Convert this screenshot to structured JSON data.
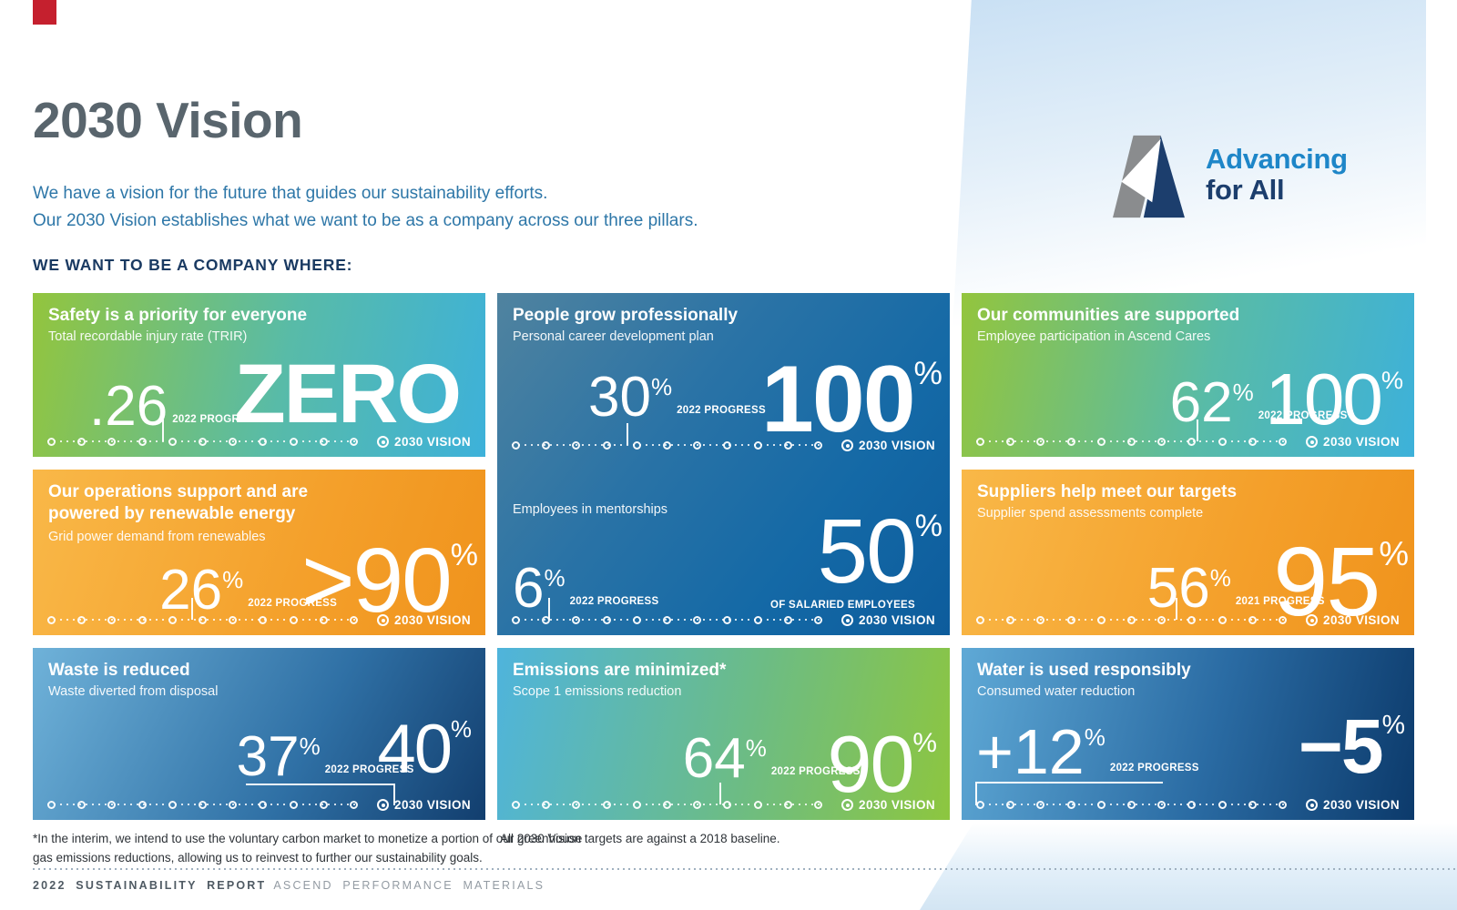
{
  "page": {
    "title": "2030 Vision",
    "intro_line1": "We have a vision for the future that guides our sustainability efforts.",
    "intro_line2": "Our 2030 Vision establishes what we want to be as a company across our three pillars.",
    "section_heading": "WE WANT TO BE A COMPANY WHERE:",
    "footnote_left_line1": "*In the interim, we intend to use the voluntary carbon market to monetize a portion of our greenhouse",
    "footnote_left_line2": "gas emissions reductions, allowing us to reinvest to further our sustainability goals.",
    "footnote_right": "All 2030 Vision targets are against a 2018 baseline.",
    "footer_bold": "2022 SUSTAINABILITY REPORT",
    "footer_rest": "ASCEND PERFORMANCE MATERIALS"
  },
  "logo": {
    "line1": "Advancing",
    "line2": "for All"
  },
  "palette": {
    "green": "#8dc63f",
    "sky_blue": "#3db1da",
    "orange": "#f5a01e",
    "navy": "#0c3a6b",
    "mid_blue": "#1469a6",
    "logo_blue": "#1e86c8",
    "logo_navy": "#1c3e6d",
    "title_gray": "#59656d",
    "intro_blue": "#2e77a8",
    "corner_red": "#c5202e"
  },
  "cards": [
    {
      "title": "Safety is a priority for everyone",
      "subtitle": "Total recordable injury rate (TRIR)",
      "progress": {
        "value": ".26",
        "unit": "",
        "label": "2022 PROGRESS"
      },
      "vision": {
        "value": "ZERO",
        "unit": "",
        "label": "2030 VISION"
      }
    },
    {
      "title": "People grow professionally",
      "subtitle": "Personal career development plan",
      "metrics": [
        {
          "progress": {
            "value": "30",
            "unit": "%",
            "label": "2022 PROGRESS"
          },
          "vision": {
            "value": "100",
            "unit": "%",
            "label": "2030 VISION"
          }
        },
        {
          "label": "Employees in mentorships",
          "progress": {
            "value": "6",
            "unit": "%",
            "label": "2022 PROGRESS"
          },
          "vision": {
            "value": "50",
            "unit": "%",
            "caption": "OF SALARIED EMPLOYEES",
            "label": "2030 VISION"
          }
        }
      ]
    },
    {
      "title": "Our communities are supported",
      "subtitle": "Employee participation in Ascend Cares",
      "progress": {
        "value": "62",
        "unit": "%",
        "label": "2022 PROGRESS"
      },
      "vision": {
        "value": "100",
        "unit": "%",
        "label": "2030 VISION"
      }
    },
    {
      "title": "Our operations support and are powered by renewable energy",
      "subtitle": "Grid power demand from renewables",
      "progress": {
        "value": "26",
        "unit": "%",
        "label": "2022 PROGRESS"
      },
      "vision": {
        "value": ">90",
        "unit": "%",
        "label": "2030 VISION"
      }
    },
    {
      "title": "Suppliers help meet our targets",
      "subtitle": "Supplier spend assessments complete",
      "progress": {
        "value": "56",
        "unit": "%",
        "label": "2021 PROGRESS"
      },
      "vision": {
        "value": "95",
        "unit": "%",
        "label": "2030 VISION"
      }
    },
    {
      "title": "Waste is reduced",
      "subtitle": "Waste diverted from disposal",
      "progress": {
        "value": "37",
        "unit": "%",
        "label": "2022 PROGRESS"
      },
      "vision": {
        "value": "40",
        "unit": "%",
        "label": "2030 VISION"
      }
    },
    {
      "title": "Emissions are minimized*",
      "subtitle": "Scope 1 emissions reduction",
      "progress": {
        "value": "64",
        "unit": "%",
        "label": "2022 PROGRESS"
      },
      "vision": {
        "value": "90",
        "unit": "%",
        "label": "2030 VISION"
      }
    },
    {
      "title": "Water is used responsibly",
      "subtitle": "Consumed water reduction",
      "progress": {
        "value": "+12",
        "unit": "%",
        "label": "2022 PROGRESS"
      },
      "vision": {
        "value": "−5",
        "unit": "%",
        "label": "2030 VISION"
      }
    }
  ]
}
